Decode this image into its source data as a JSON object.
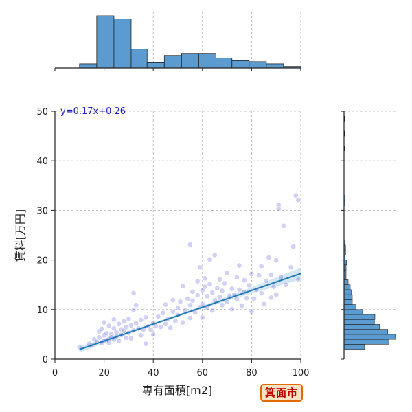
{
  "chart_data": {
    "type": "scatter",
    "xlabel": "専有面積[m2]",
    "ylabel": "賃料[万円]",
    "xlim": [
      0,
      100
    ],
    "ylim": [
      0,
      50
    ],
    "x_ticks": [
      "0",
      "20",
      "40",
      "60",
      "80",
      "100"
    ],
    "y_ticks": [
      "0",
      "10",
      "20",
      "30",
      "40",
      "50"
    ],
    "grid": true,
    "regression": {
      "label": "y=0.17x+0.26",
      "slope": 0.17,
      "intercept": 0.26,
      "x_range": [
        10,
        100
      ]
    },
    "top_histogram": {
      "bins": [
        [
          10,
          17
        ],
        [
          17,
          24
        ],
        [
          24,
          31
        ],
        [
          31,
          37.5
        ],
        [
          37.5,
          44.5
        ],
        [
          44.5,
          51.5
        ],
        [
          51.5,
          58.5
        ],
        [
          58.5,
          65.5
        ],
        [
          65.5,
          72
        ],
        [
          72,
          79
        ],
        [
          79,
          86
        ],
        [
          86,
          93
        ],
        [
          93,
          100
        ]
      ],
      "relative_heights": [
        0.08,
        1.0,
        0.94,
        0.36,
        0.1,
        0.24,
        0.28,
        0.28,
        0.19,
        0.14,
        0.12,
        0.08,
        0.03
      ]
    },
    "right_histogram": {
      "bins": [
        [
          2,
          3
        ],
        [
          3,
          4
        ],
        [
          4,
          5
        ],
        [
          5,
          6
        ],
        [
          6,
          7
        ],
        [
          7,
          8
        ],
        [
          8,
          9
        ],
        [
          9,
          10
        ],
        [
          10,
          11
        ],
        [
          11,
          12
        ],
        [
          12,
          13
        ],
        [
          13,
          14
        ],
        [
          14,
          15
        ],
        [
          15,
          16
        ],
        [
          16,
          17
        ],
        [
          17,
          18
        ],
        [
          18,
          19
        ],
        [
          19,
          20
        ],
        [
          20,
          21
        ],
        [
          21,
          22
        ],
        [
          22,
          23
        ],
        [
          23,
          24
        ],
        [
          31,
          32
        ],
        [
          32,
          33
        ],
        [
          42,
          43
        ],
        [
          45,
          46
        ],
        [
          48,
          49
        ]
      ],
      "relative_heights": [
        0.4,
        0.87,
        1.0,
        0.85,
        0.69,
        0.59,
        0.6,
        0.36,
        0.23,
        0.16,
        0.16,
        0.14,
        0.12,
        0.08,
        0.04,
        0.04,
        0.04,
        0.05,
        0.02,
        0.03,
        0.03,
        0.02,
        0.02,
        0.02,
        0.01,
        0.01,
        0.01
      ]
    },
    "points": [
      [
        10,
        2.4
      ],
      [
        14,
        3.1
      ],
      [
        15,
        2.8
      ],
      [
        16,
        4.0
      ],
      [
        17,
        3.5
      ],
      [
        18,
        4.4
      ],
      [
        18,
        5.6
      ],
      [
        19,
        3.2
      ],
      [
        19,
        6.1
      ],
      [
        20,
        3.6
      ],
      [
        20,
        7.4
      ],
      [
        20,
        4.8
      ],
      [
        21,
        3.8
      ],
      [
        21,
        5.2
      ],
      [
        22,
        4.1
      ],
      [
        22,
        6.7
      ],
      [
        22,
        3.3
      ],
      [
        23,
        5.0
      ],
      [
        23,
        4.4
      ],
      [
        24,
        6.2
      ],
      [
        24,
        3.9
      ],
      [
        24,
        8.0
      ],
      [
        25,
        5.4
      ],
      [
        25,
        4.6
      ],
      [
        26,
        7.1
      ],
      [
        26,
        3.7
      ],
      [
        27,
        6.0
      ],
      [
        27,
        4.9
      ],
      [
        28,
        5.7
      ],
      [
        28,
        7.6
      ],
      [
        29,
        4.3
      ],
      [
        29,
        6.5
      ],
      [
        30,
        5.3
      ],
      [
        30,
        8.1
      ],
      [
        31,
        6.8
      ],
      [
        31,
        4.2
      ],
      [
        32,
        9.9
      ],
      [
        32,
        13.3
      ],
      [
        32,
        5.8
      ],
      [
        33,
        7.2
      ],
      [
        33,
        10.9
      ],
      [
        34,
        6.2
      ],
      [
        35,
        4.8
      ],
      [
        35,
        7.9
      ],
      [
        36,
        6.0
      ],
      [
        37,
        3.1
      ],
      [
        37,
        8.4
      ],
      [
        38,
        6.6
      ],
      [
        39,
        5.9
      ],
      [
        40,
        5.0
      ],
      [
        40,
        7.3
      ],
      [
        41,
        6.7
      ],
      [
        42,
        8.6
      ],
      [
        43,
        6.5
      ],
      [
        44,
        9.3
      ],
      [
        45,
        7.1
      ],
      [
        45,
        11.0
      ],
      [
        46,
        8.1
      ],
      [
        47,
        6.3
      ],
      [
        48,
        9.6
      ],
      [
        48,
        11.9
      ],
      [
        49,
        7.7
      ],
      [
        50,
        10.3
      ],
      [
        50,
        8.9
      ],
      [
        51,
        11.6
      ],
      [
        52,
        14.7
      ],
      [
        52,
        7.4
      ],
      [
        53,
        9.8
      ],
      [
        54,
        12.2
      ],
      [
        55,
        8.3
      ],
      [
        55,
        10.9
      ],
      [
        55,
        23.1
      ],
      [
        56,
        11.8
      ],
      [
        56,
        13.6
      ],
      [
        57,
        9.4
      ],
      [
        58,
        12.9
      ],
      [
        58,
        15.7
      ],
      [
        59,
        10.5
      ],
      [
        59,
        18.5
      ],
      [
        60,
        11.1
      ],
      [
        60,
        13.9
      ],
      [
        60,
        8.4
      ],
      [
        61,
        14.6
      ],
      [
        61,
        16.3
      ],
      [
        62,
        10.3
      ],
      [
        62,
        12.7
      ],
      [
        63,
        15.1
      ],
      [
        63,
        20.1
      ],
      [
        64,
        9.8
      ],
      [
        64,
        13.4
      ],
      [
        65,
        21.0
      ],
      [
        65,
        11.9
      ],
      [
        66,
        14.3
      ],
      [
        67,
        12.6
      ],
      [
        67,
        16.1
      ],
      [
        68,
        10.9
      ],
      [
        68,
        13.8
      ],
      [
        69,
        15.3
      ],
      [
        70,
        11.5
      ],
      [
        70,
        17.4
      ],
      [
        71,
        12.8
      ],
      [
        72,
        14.2
      ],
      [
        72,
        10.1
      ],
      [
        73,
        13.0
      ],
      [
        74,
        16.5
      ],
      [
        74,
        12.1
      ],
      [
        75,
        18.9
      ],
      [
        75,
        14.0
      ],
      [
        76,
        10.8
      ],
      [
        77,
        13.5
      ],
      [
        77,
        15.9
      ],
      [
        78,
        12.3
      ],
      [
        79,
        14.9
      ],
      [
        80,
        9.6
      ],
      [
        80,
        17.2
      ],
      [
        81,
        12.2
      ],
      [
        82,
        14.0
      ],
      [
        83,
        16.9
      ],
      [
        84,
        13.3
      ],
      [
        84,
        18.7
      ],
      [
        85,
        11.1
      ],
      [
        86,
        15.8
      ],
      [
        87,
        20.5
      ],
      [
        88,
        12.4
      ],
      [
        88,
        17.0
      ],
      [
        89,
        14.6
      ],
      [
        90,
        19.9
      ],
      [
        90,
        13.0
      ],
      [
        91,
        31.1
      ],
      [
        91,
        30.3
      ],
      [
        92,
        16.5
      ],
      [
        93,
        26.9
      ],
      [
        94,
        15.0
      ],
      [
        96,
        18.5
      ],
      [
        97,
        22.7
      ],
      [
        98,
        33.0
      ],
      [
        99,
        32.1
      ],
      [
        99,
        16.1
      ]
    ]
  },
  "city_badge": "箕面市",
  "colors": {
    "hist_fill": "#5b9bd0",
    "hist_edge": "#222222",
    "point": "#2b2fd1",
    "line": "#1f77b4",
    "ci": "#c6dcef",
    "grid": "#b0b0b0",
    "eq": "#2020c0"
  }
}
